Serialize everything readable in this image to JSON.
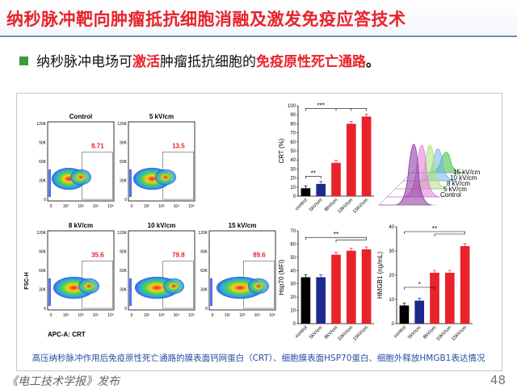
{
  "slide": {
    "title": "纳秒脉冲靶向肿瘤抵抗细胞消融及激发免疫应答技术",
    "bullet": {
      "part1": "纳秒脉冲电场可",
      "part2": "激活",
      "part3": "肿瘤抵抗细胞的",
      "part4": "免疫原性死亡通路",
      "part5": "。"
    },
    "caption": "高压纳秒脉冲作用后免疫原性死亡通路的膜表面钙网蛋白（CRT）、细胞膜表面HSP70蛋白、细胞外释放HMGB1表达情况",
    "footer": "《电工技术学报》发布",
    "page_number": "48"
  },
  "flow": {
    "y_label": "FSC-H",
    "x_label": "APC-A: CRT",
    "panels": [
      {
        "label": "Control",
        "pct": "8.71",
        "yticks": [
          "120K",
          "90K",
          "60K",
          "30K",
          "0"
        ]
      },
      {
        "label": "5 kV/cm",
        "pct": "13.5",
        "yticks": [
          "120K",
          "90K",
          "60K",
          "30K",
          "0"
        ]
      },
      {
        "label": "8 kV/cm",
        "pct": "35.6",
        "yticks": [
          "120K",
          "90K",
          "60K",
          "30K",
          "0"
        ]
      },
      {
        "label": "10 kV/cm",
        "pct": "79.8",
        "yticks": [
          "120K",
          "90K",
          "60K",
          "30K",
          "0"
        ]
      },
      {
        "label": "15 kV/cm",
        "pct": "89.6",
        "yticks": [
          "120K",
          "90K",
          "60K",
          "30K",
          "0"
        ]
      }
    ],
    "xticks": [
      "0",
      "10²",
      "10³",
      "10⁴",
      "10⁵"
    ]
  },
  "histogram": {
    "labels": [
      "15 kV/cm",
      "10 kV/cm",
      "8 kV/cm",
      "5 kV/cm",
      "Control"
    ],
    "colors": [
      "#3cb93c",
      "#6fb4e8",
      "#b0e07a",
      "#e07ad8",
      "#8a2ea0"
    ]
  },
  "chart_data": [
    {
      "type": "bar",
      "title": "",
      "ylabel": "CRT (%)",
      "categories": [
        "control",
        "5kV/cm",
        "8kV/cm",
        "10kV/cm",
        "15kV/cm"
      ],
      "values": [
        8.7,
        13.5,
        36.8,
        80,
        88
      ],
      "ylim": [
        0,
        100
      ],
      "yticks": [
        "0",
        "10",
        "20",
        "30",
        "40",
        "50",
        "60",
        "70",
        "80",
        "90",
        "100"
      ],
      "colors": [
        "#000000",
        "#1d2a8c",
        "#e8232a",
        "#e8232a",
        "#e8232a"
      ],
      "annotations": [
        "**",
        "***"
      ]
    },
    {
      "type": "bar",
      "title": "",
      "ylabel": "Hsp70 (MFI)",
      "categories": [
        "control",
        "5kV/cm",
        "8kV/cm",
        "10kV/cm",
        "15kV/cm"
      ],
      "values": [
        35,
        35,
        52,
        55,
        56
      ],
      "ylim": [
        0,
        70
      ],
      "yticks": [
        "0",
        "10",
        "20",
        "30",
        "40",
        "50",
        "60",
        "70"
      ],
      "colors": [
        "#000000",
        "#1d2a8c",
        "#e8232a",
        "#e8232a",
        "#e8232a"
      ],
      "annotations": [
        "**"
      ]
    },
    {
      "type": "bar",
      "title": "",
      "ylabel": "HMGB1 (ng/mL)",
      "categories": [
        "control",
        "5kV/cm",
        "8kV/cm",
        "10kV/cm",
        "15kV/cm"
      ],
      "values": [
        7.5,
        9.5,
        21,
        21,
        32
      ],
      "ylim": [
        0,
        40
      ],
      "yticks": [
        "0",
        "10",
        "20",
        "30",
        "40"
      ],
      "colors": [
        "#000000",
        "#1d2a8c",
        "#e8232a",
        "#e8232a",
        "#e8232a"
      ],
      "annotations": [
        "*",
        "**"
      ]
    }
  ]
}
